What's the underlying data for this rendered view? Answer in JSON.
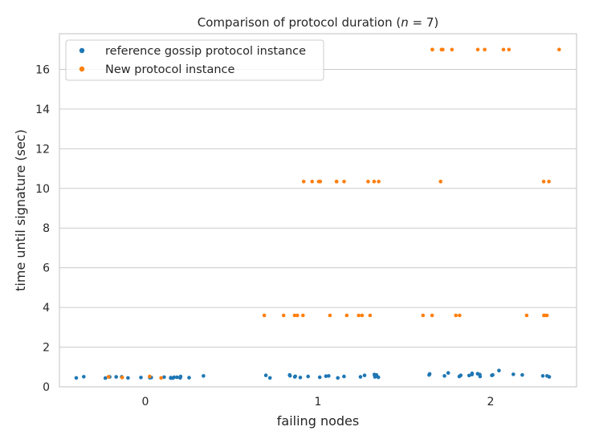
{
  "chart_data": {
    "type": "scatter",
    "title": "Comparison of protocol duration (n = 7)",
    "title_parts": {
      "prefix": "Comparison of protocol duration (",
      "var": "n",
      "suffix": " = 7)"
    },
    "xlabel": "failing nodes",
    "ylabel": "time until signature (sec)",
    "categories": [
      "0",
      "1",
      "2"
    ],
    "ylim": [
      0,
      17.8
    ],
    "yticks": [
      "0",
      "2",
      "4",
      "6",
      "8",
      "10",
      "12",
      "14",
      "16"
    ],
    "grid": true,
    "legend_position": "top-left",
    "series": [
      {
        "name": "reference gossip protocol instance",
        "color": "#1f77b4",
        "points": [
          {
            "x": 0,
            "y": 0.45
          },
          {
            "x": 0,
            "y": 0.55
          },
          {
            "x": 0,
            "y": 0.5
          },
          {
            "x": 0,
            "y": 0.44
          },
          {
            "x": 0,
            "y": 0.48
          },
          {
            "x": 0,
            "y": 0.46
          },
          {
            "x": 0,
            "y": 0.5
          },
          {
            "x": 0,
            "y": 0.45
          },
          {
            "x": 0,
            "y": 0.52
          },
          {
            "x": 0,
            "y": 0.47
          },
          {
            "x": 0,
            "y": 0.44
          },
          {
            "x": 0,
            "y": 0.49
          },
          {
            "x": 0,
            "y": 0.46
          },
          {
            "x": 0,
            "y": 0.5
          },
          {
            "x": 0,
            "y": 0.45
          },
          {
            "x": 0,
            "y": 0.48
          },
          {
            "x": 0,
            "y": 0.44
          },
          {
            "x": 0,
            "y": 0.51
          },
          {
            "x": 0,
            "y": 0.46
          },
          {
            "x": 0,
            "y": 0.47
          },
          {
            "x": 1,
            "y": 0.55
          },
          {
            "x": 1,
            "y": 0.5
          },
          {
            "x": 1,
            "y": 0.58
          },
          {
            "x": 1,
            "y": 0.48
          },
          {
            "x": 1,
            "y": 0.6
          },
          {
            "x": 1,
            "y": 0.52
          },
          {
            "x": 1,
            "y": 0.45
          },
          {
            "x": 1,
            "y": 0.55
          },
          {
            "x": 1,
            "y": 0.5
          },
          {
            "x": 1,
            "y": 0.62
          },
          {
            "x": 1,
            "y": 0.47
          },
          {
            "x": 1,
            "y": 0.53
          },
          {
            "x": 1,
            "y": 0.58
          },
          {
            "x": 1,
            "y": 0.5
          },
          {
            "x": 1,
            "y": 0.45
          },
          {
            "x": 1,
            "y": 0.56
          },
          {
            "x": 1,
            "y": 0.52
          },
          {
            "x": 1,
            "y": 0.6
          },
          {
            "x": 1,
            "y": 0.48
          },
          {
            "x": 1,
            "y": 0.54
          },
          {
            "x": 2,
            "y": 0.6
          },
          {
            "x": 2,
            "y": 0.55
          },
          {
            "x": 2,
            "y": 0.65
          },
          {
            "x": 2,
            "y": 0.52
          },
          {
            "x": 2,
            "y": 0.82
          },
          {
            "x": 2,
            "y": 0.58
          },
          {
            "x": 2,
            "y": 0.62
          },
          {
            "x": 2,
            "y": 0.7
          },
          {
            "x": 2,
            "y": 0.55
          },
          {
            "x": 2,
            "y": 0.6
          },
          {
            "x": 2,
            "y": 0.68
          },
          {
            "x": 2,
            "y": 0.57
          },
          {
            "x": 2,
            "y": 0.63
          },
          {
            "x": 2,
            "y": 0.5
          },
          {
            "x": 2,
            "y": 0.6
          },
          {
            "x": 2,
            "y": 0.55
          },
          {
            "x": 2,
            "y": 0.66
          },
          {
            "x": 2,
            "y": 0.58
          },
          {
            "x": 2,
            "y": 0.62
          },
          {
            "x": 2,
            "y": 0.52
          }
        ]
      },
      {
        "name": "New protocol instance",
        "color": "#ff7f0e",
        "points": [
          {
            "x": 0,
            "y": 0.47
          },
          {
            "x": 0,
            "y": 0.52
          },
          {
            "x": 0,
            "y": 0.45
          },
          {
            "x": 0,
            "y": 0.5
          },
          {
            "x": 1,
            "y": 10.35
          },
          {
            "x": 1,
            "y": 10.35
          },
          {
            "x": 1,
            "y": 10.35
          },
          {
            "x": 1,
            "y": 10.35
          },
          {
            "x": 1,
            "y": 10.35
          },
          {
            "x": 1,
            "y": 10.35
          },
          {
            "x": 1,
            "y": 10.35
          },
          {
            "x": 1,
            "y": 10.35
          },
          {
            "x": 1,
            "y": 10.35
          },
          {
            "x": 1,
            "y": 10.35
          },
          {
            "x": 1,
            "y": 3.6
          },
          {
            "x": 1,
            "y": 3.6
          },
          {
            "x": 1,
            "y": 3.6
          },
          {
            "x": 1,
            "y": 3.6
          },
          {
            "x": 1,
            "y": 3.6
          },
          {
            "x": 1,
            "y": 3.6
          },
          {
            "x": 1,
            "y": 3.6
          },
          {
            "x": 1,
            "y": 3.6
          },
          {
            "x": 1,
            "y": 3.6
          },
          {
            "x": 1,
            "y": 3.6
          },
          {
            "x": 2,
            "y": 17.0
          },
          {
            "x": 2,
            "y": 17.0
          },
          {
            "x": 2,
            "y": 17.0
          },
          {
            "x": 2,
            "y": 17.0
          },
          {
            "x": 2,
            "y": 17.0
          },
          {
            "x": 2,
            "y": 17.0
          },
          {
            "x": 2,
            "y": 17.0
          },
          {
            "x": 2,
            "y": 17.0
          },
          {
            "x": 2,
            "y": 17.0
          },
          {
            "x": 2,
            "y": 17.0
          },
          {
            "x": 2,
            "y": 10.35
          },
          {
            "x": 2,
            "y": 10.35
          },
          {
            "x": 2,
            "y": 10.35
          },
          {
            "x": 2,
            "y": 3.6
          },
          {
            "x": 2,
            "y": 3.6
          },
          {
            "x": 2,
            "y": 3.6
          },
          {
            "x": 2,
            "y": 3.6
          },
          {
            "x": 2,
            "y": 3.6
          },
          {
            "x": 2,
            "y": 3.6
          },
          {
            "x": 2,
            "y": 3.6
          },
          {
            "x": 2,
            "y": 3.6
          }
        ]
      }
    ]
  }
}
